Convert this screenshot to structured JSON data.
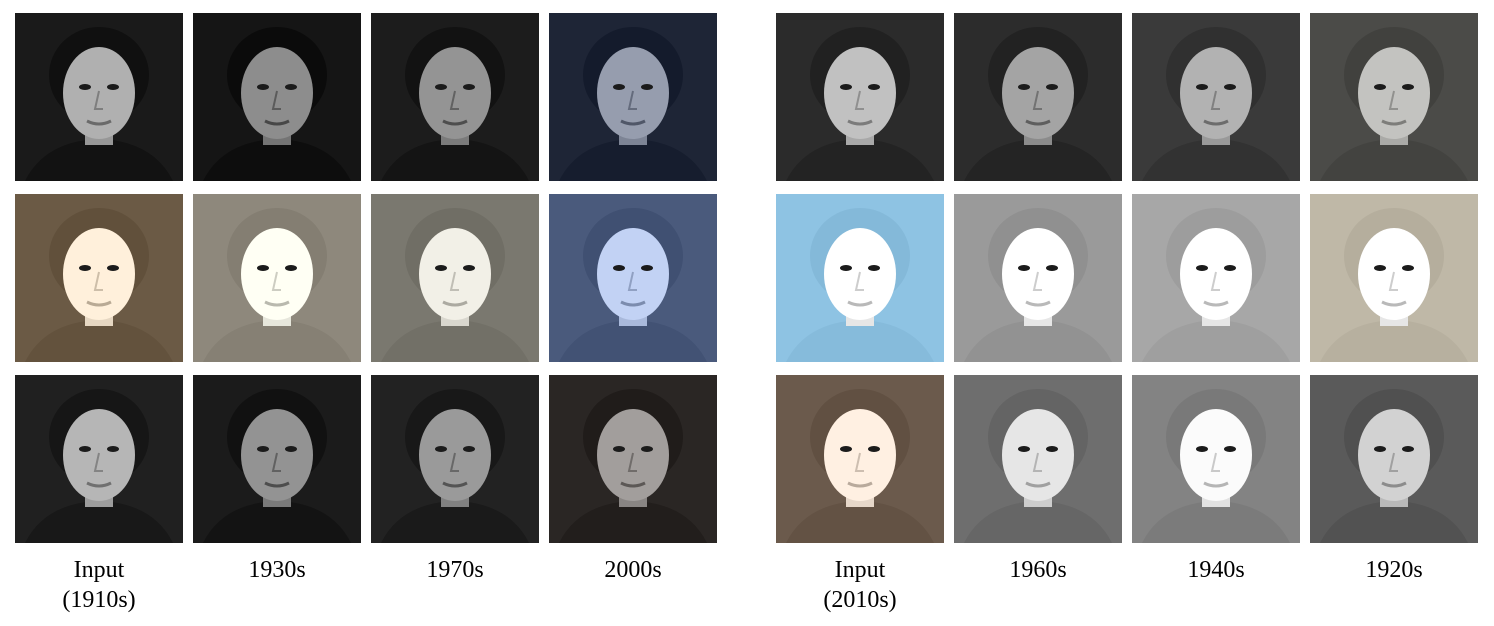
{
  "figure": {
    "left_panel": {
      "labels": [
        {
          "line1": "Input",
          "line2": "(1910s)"
        },
        {
          "line1": "1930s",
          "line2": ""
        },
        {
          "line1": "1970s",
          "line2": ""
        },
        {
          "line1": "2000s",
          "line2": ""
        }
      ],
      "rows": [
        {
          "subject": "man-mustache",
          "tones": [
            "#1a1a1a",
            "#151515",
            "#1c1c1c",
            "#1e2536"
          ]
        },
        {
          "subject": "woman-curly",
          "tones": [
            "#6b5a45",
            "#8e887c",
            "#7a786f",
            "#4a5a7c"
          ]
        },
        {
          "subject": "man-hat",
          "tones": [
            "#202020",
            "#1b1b1b",
            "#222222",
            "#2a2624"
          ]
        }
      ]
    },
    "right_panel": {
      "labels": [
        {
          "line1": "Input",
          "line2": "(2010s)"
        },
        {
          "line1": "1960s",
          "line2": ""
        },
        {
          "line1": "1940s",
          "line2": ""
        },
        {
          "line1": "1920s",
          "line2": ""
        }
      ],
      "rows": [
        {
          "subject": "woman-dark-hair",
          "tones": [
            "#2b2b2b",
            "#2c2c2c",
            "#3a3a3a",
            "#4b4b48"
          ]
        },
        {
          "subject": "woman-black-hair",
          "tones": [
            "#8ec3e3",
            "#9a9a9a",
            "#a7a7a7",
            "#bfb8a7"
          ]
        },
        {
          "subject": "man-long-hair",
          "tones": [
            "#6b5a4c",
            "#6e6e6e",
            "#838383",
            "#5a5a5a"
          ]
        }
      ]
    }
  }
}
